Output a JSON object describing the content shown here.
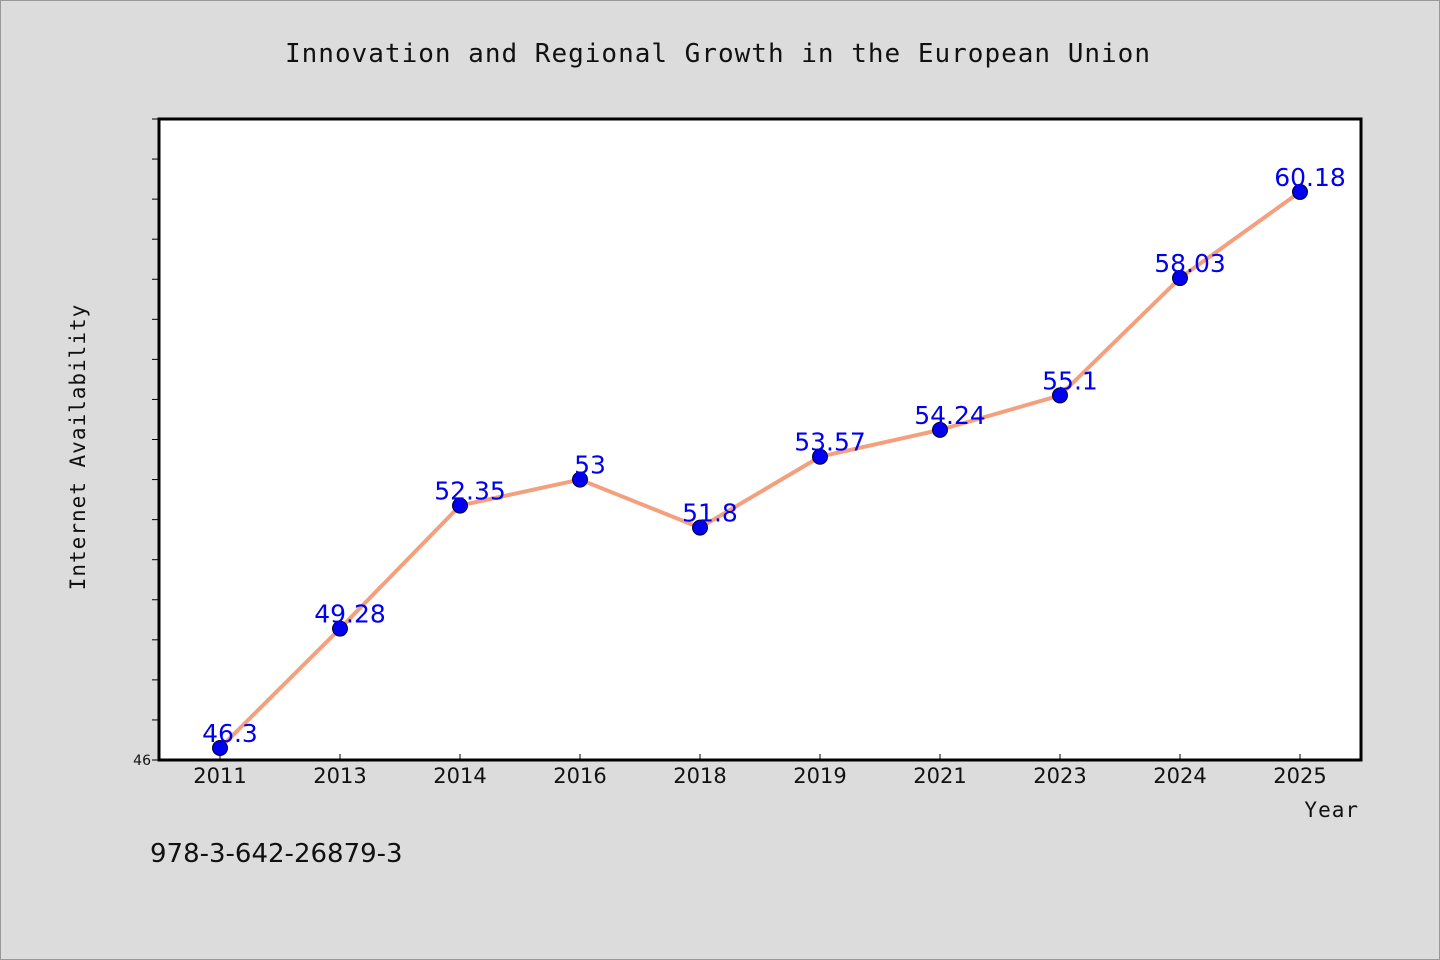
{
  "chart_data": {
    "type": "line",
    "title": "Innovation and Regional Growth in the European Union",
    "xlabel": "Year",
    "ylabel": "Internet Availability",
    "categories": [
      "2011",
      "2013",
      "2014",
      "2016",
      "2018",
      "2019",
      "2021",
      "2023",
      "2024",
      "2025"
    ],
    "series": [
      {
        "values": [
          46.3,
          49.28,
          52.35,
          53,
          51.8,
          53.57,
          54.24,
          55.1,
          58.03,
          60.18
        ],
        "color": "#f4a07e",
        "marker_color": "#0000ee"
      }
    ],
    "data_labels": [
      "46.3",
      "49.28",
      "52.35",
      "53",
      "51.8",
      "53.57",
      "54.24",
      "55.1",
      "58.03",
      "60.18"
    ],
    "data_label_color": "#0000ee",
    "ylim": [
      46,
      62
    ],
    "y_tick_labels": [
      "46"
    ],
    "grid": false,
    "legend": "none"
  },
  "footer_text": "978-3-642-26879-3"
}
